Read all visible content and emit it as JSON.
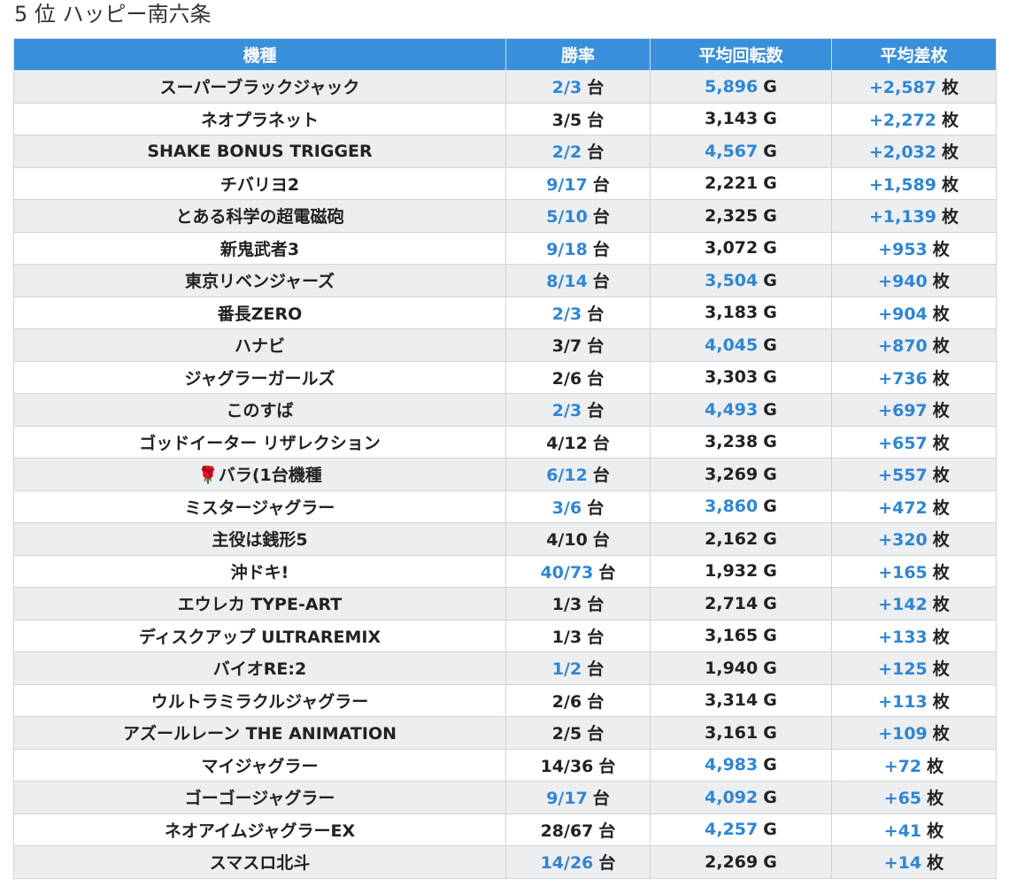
{
  "header": {
    "title": "5 位 ハッピー南六条"
  },
  "table": {
    "columns": [
      "機種",
      "勝率",
      "平均回転数",
      "平均差枚"
    ],
    "units": [
      "台",
      "G",
      "枚"
    ],
    "rows": [
      [
        {
          "text": "スーパーブラックジャック"
        },
        {
          "text": "2/3",
          "color": "#2f86d4"
        },
        {
          "text": "5,896",
          "color": "#2f86d4"
        },
        {
          "text": "+2,587",
          "color": "#2f86d4"
        }
      ],
      [
        {
          "text": "ネオプラネット"
        },
        {
          "text": "3/5",
          "color": "#222222"
        },
        {
          "text": "3,143",
          "color": "#222222"
        },
        {
          "text": "+2,272",
          "color": "#2f86d4"
        }
      ],
      [
        {
          "text": "SHAKE BONUS TRIGGER"
        },
        {
          "text": "2/2",
          "color": "#2f86d4"
        },
        {
          "text": "4,567",
          "color": "#2f86d4"
        },
        {
          "text": "+2,032",
          "color": "#2f86d4"
        }
      ],
      [
        {
          "text": "チバリヨ2"
        },
        {
          "text": "9/17",
          "color": "#2f86d4"
        },
        {
          "text": "2,221",
          "color": "#222222"
        },
        {
          "text": "+1,589",
          "color": "#2f86d4"
        }
      ],
      [
        {
          "text": "とある科学の超電磁砲"
        },
        {
          "text": "5/10",
          "color": "#2f86d4"
        },
        {
          "text": "2,325",
          "color": "#222222"
        },
        {
          "text": "+1,139",
          "color": "#2f86d4"
        }
      ],
      [
        {
          "text": "新鬼武者3"
        },
        {
          "text": "9/18",
          "color": "#2f86d4"
        },
        {
          "text": "3,072",
          "color": "#222222"
        },
        {
          "text": "+953",
          "color": "#2f86d4"
        }
      ],
      [
        {
          "text": "東京リベンジャーズ"
        },
        {
          "text": "8/14",
          "color": "#2f86d4"
        },
        {
          "text": "3,504",
          "color": "#2f86d4"
        },
        {
          "text": "+940",
          "color": "#2f86d4"
        }
      ],
      [
        {
          "text": "番長ZERO"
        },
        {
          "text": "2/3",
          "color": "#2f86d4"
        },
        {
          "text": "3,183",
          "color": "#222222"
        },
        {
          "text": "+904",
          "color": "#2f86d4"
        }
      ],
      [
        {
          "text": "ハナビ"
        },
        {
          "text": "3/7",
          "color": "#222222"
        },
        {
          "text": "4,045",
          "color": "#2f86d4"
        },
        {
          "text": "+870",
          "color": "#2f86d4"
        }
      ],
      [
        {
          "text": "ジャグラーガールズ"
        },
        {
          "text": "2/6",
          "color": "#222222"
        },
        {
          "text": "3,303",
          "color": "#222222"
        },
        {
          "text": "+736",
          "color": "#2f86d4"
        }
      ],
      [
        {
          "text": "このすば"
        },
        {
          "text": "2/3",
          "color": "#2f86d4"
        },
        {
          "text": "4,493",
          "color": "#2f86d4"
        },
        {
          "text": "+697",
          "color": "#2f86d4"
        }
      ],
      [
        {
          "text": "ゴッドイーター リザレクション"
        },
        {
          "text": "4/12",
          "color": "#222222"
        },
        {
          "text": "3,238",
          "color": "#222222"
        },
        {
          "text": "+657",
          "color": "#2f86d4"
        }
      ],
      [
        {
          "text": "🌹バラ(1台機種"
        },
        {
          "text": "6/12",
          "color": "#2f86d4"
        },
        {
          "text": "3,269",
          "color": "#222222"
        },
        {
          "text": "+557",
          "color": "#2f86d4"
        }
      ],
      [
        {
          "text": "ミスタージャグラー"
        },
        {
          "text": "3/6",
          "color": "#2f86d4"
        },
        {
          "text": "3,860",
          "color": "#2f86d4"
        },
        {
          "text": "+472",
          "color": "#2f86d4"
        }
      ],
      [
        {
          "text": "主役は銭形5"
        },
        {
          "text": "4/10",
          "color": "#222222"
        },
        {
          "text": "2,162",
          "color": "#222222"
        },
        {
          "text": "+320",
          "color": "#2f86d4"
        }
      ],
      [
        {
          "text": "沖ドキ!"
        },
        {
          "text": "40/73",
          "color": "#2f86d4"
        },
        {
          "text": "1,932",
          "color": "#222222"
        },
        {
          "text": "+165",
          "color": "#2f86d4"
        }
      ],
      [
        {
          "text": "エウレカ TYPE-ART"
        },
        {
          "text": "1/3",
          "color": "#222222"
        },
        {
          "text": "2,714",
          "color": "#222222"
        },
        {
          "text": "+142",
          "color": "#2f86d4"
        }
      ],
      [
        {
          "text": "ディスクアップ ULTRAREMIX"
        },
        {
          "text": "1/3",
          "color": "#222222"
        },
        {
          "text": "3,165",
          "color": "#222222"
        },
        {
          "text": "+133",
          "color": "#2f86d4"
        }
      ],
      [
        {
          "text": "バイオRE:2"
        },
        {
          "text": "1/2",
          "color": "#2f86d4"
        },
        {
          "text": "1,940",
          "color": "#222222"
        },
        {
          "text": "+125",
          "color": "#2f86d4"
        }
      ],
      [
        {
          "text": "ウルトラミラクルジャグラー"
        },
        {
          "text": "2/6",
          "color": "#222222"
        },
        {
          "text": "3,314",
          "color": "#222222"
        },
        {
          "text": "+113",
          "color": "#2f86d4"
        }
      ],
      [
        {
          "text": "アズールレーン THE ANIMATION"
        },
        {
          "text": "2/5",
          "color": "#222222"
        },
        {
          "text": "3,161",
          "color": "#222222"
        },
        {
          "text": "+109",
          "color": "#2f86d4"
        }
      ],
      [
        {
          "text": "マイジャグラー"
        },
        {
          "text": "14/36",
          "color": "#222222"
        },
        {
          "text": "4,983",
          "color": "#2f86d4"
        },
        {
          "text": "+72",
          "color": "#2f86d4"
        }
      ],
      [
        {
          "text": "ゴーゴージャグラー"
        },
        {
          "text": "9/17",
          "color": "#2f86d4"
        },
        {
          "text": "4,092",
          "color": "#2f86d4"
        },
        {
          "text": "+65",
          "color": "#2f86d4"
        }
      ],
      [
        {
          "text": "ネオアイムジャグラーEX"
        },
        {
          "text": "28/67",
          "color": "#222222"
        },
        {
          "text": "4,257",
          "color": "#2f86d4"
        },
        {
          "text": "+41",
          "color": "#2f86d4"
        }
      ],
      [
        {
          "text": "スマスロ北斗"
        },
        {
          "text": "14/26",
          "color": "#2f86d4"
        },
        {
          "text": "2,269",
          "color": "#222222"
        },
        {
          "text": "+14",
          "color": "#2f86d4"
        }
      ]
    ]
  }
}
